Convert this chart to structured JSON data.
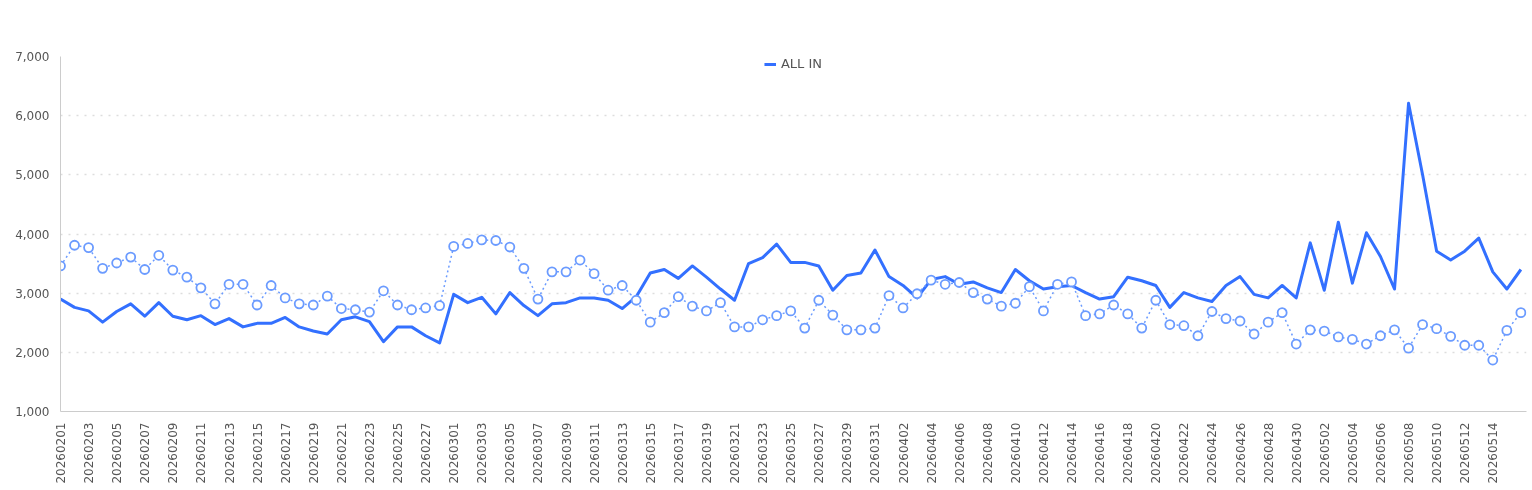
{
  "chart_data": {
    "type": "line",
    "categories": [
      "20260201",
      null,
      "20260203",
      null,
      "20260205",
      null,
      "20260207",
      null,
      "20260209",
      null,
      "20260211",
      null,
      "20260213",
      null,
      "20260215",
      null,
      "20260217",
      null,
      "20260219",
      null,
      "20260221",
      null,
      "20260223",
      null,
      "20260225",
      null,
      "20260227",
      null,
      "20260301",
      null,
      "20260303",
      null,
      "20260305",
      null,
      "20260307",
      null,
      "20260309",
      null,
      "20260311",
      null,
      "20260313",
      null,
      "20260315",
      null,
      "20260317",
      null,
      "20260319",
      null,
      "20260321",
      null,
      "20260323",
      null,
      "20260325",
      null,
      "20260327",
      null,
      "20260329",
      null,
      "20260331",
      null,
      "20260402",
      null,
      "20260404",
      null,
      "20260406",
      null,
      "20260408",
      null,
      "20260410",
      null,
      "20260412",
      null,
      "20260414",
      null,
      "20260416",
      null,
      "20260418",
      null,
      "20260420",
      null,
      "20260422",
      null,
      "20260424",
      null,
      "20260426",
      null,
      "20260428",
      null,
      "20260430",
      null,
      "20260502",
      null,
      "20260504",
      null,
      "20260506",
      null,
      "20260508",
      null,
      "20260510",
      null,
      "20260512",
      null,
      "20260514",
      null,
      null
    ],
    "series": [
      {
        "name": "ALL IN",
        "color": "#3370ff",
        "marker": "none",
        "line_style": "solid",
        "values": [
          2900,
          2760,
          2700,
          2510,
          2690,
          2820,
          2610,
          2840,
          2610,
          2550,
          2620,
          2470,
          2570,
          2430,
          2490,
          2490,
          2590,
          2430,
          2360,
          2310,
          2550,
          2600,
          2520,
          2180,
          2430,
          2430,
          2280,
          2160,
          2980,
          2840,
          2930,
          2650,
          3010,
          2790,
          2620,
          2820,
          2840,
          2920,
          2920,
          2880,
          2740,
          2940,
          3340,
          3400,
          3250,
          3460,
          3270,
          3070,
          2880,
          3500,
          3600,
          3830,
          3520,
          3520,
          3460,
          3050,
          3300,
          3340,
          3730,
          3280,
          3130,
          2920,
          3230,
          3280,
          3150,
          3190,
          3090,
          3010,
          3400,
          3210,
          3070,
          3110,
          3130,
          3010,
          2900,
          2940,
          3270,
          3210,
          3130,
          2760,
          3010,
          2920,
          2860,
          3130,
          3280,
          2980,
          2920,
          3130,
          2920,
          3850,
          3050,
          4200,
          3170,
          4020,
          3620,
          3070,
          6210,
          5000,
          3710,
          3560,
          3710,
          3930,
          3360,
          3070,
          3400
        ]
      },
      {
        "color": "#6b9bff",
        "marker": "circle",
        "line_style": "dotted",
        "values": [
          3460,
          3810,
          3770,
          3420,
          3510,
          3610,
          3400,
          3640,
          3390,
          3270,
          3090,
          2820,
          3150,
          3150,
          2800,
          3130,
          2920,
          2820,
          2800,
          2950,
          2740,
          2720,
          2680,
          3040,
          2800,
          2720,
          2750,
          2790,
          3790,
          3840,
          3900,
          3890,
          3780,
          3420,
          2900,
          3360,
          3360,
          3560,
          3330,
          3050,
          3130,
          2880,
          2510,
          2670,
          2940,
          2780,
          2700,
          2840,
          2430,
          2430,
          2550,
          2620,
          2700,
          2410,
          2880,
          2630,
          2380,
          2380,
          2410,
          2960,
          2750,
          2990,
          3220,
          3150,
          3180,
          3010,
          2900,
          2780,
          2830,
          3110,
          2700,
          3150,
          3190,
          2620,
          2650,
          2800,
          2650,
          2410,
          2880,
          2470,
          2450,
          2280,
          2690,
          2570,
          2530,
          2310,
          2510,
          2670,
          2140,
          2380,
          2360,
          2260,
          2220,
          2140,
          2280,
          2380,
          2070,
          2470,
          2400,
          2270,
          2120,
          2120,
          1870,
          2370,
          2670
        ]
      }
    ],
    "ylim": [
      1000,
      7000
    ],
    "yticks": [
      {
        "value": 1000,
        "label": "1,000"
      },
      {
        "value": 2000,
        "label": "2,000"
      },
      {
        "value": 3000,
        "label": "3,000"
      },
      {
        "value": 4000,
        "label": "4,000"
      },
      {
        "value": 5000,
        "label": "5,000"
      },
      {
        "value": 6000,
        "label": "6,000"
      },
      {
        "value": 7000,
        "label": "7,000"
      }
    ],
    "grid": "y",
    "legend": "top"
  }
}
